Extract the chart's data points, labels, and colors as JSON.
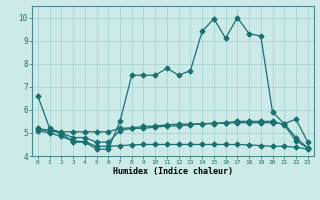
{
  "xlabel": "Humidex (Indice chaleur)",
  "background_color": "#cceae8",
  "line_color": "#1a7070",
  "grid_color": "#aad4d2",
  "xlim": [
    -0.5,
    23.5
  ],
  "ylim": [
    4.0,
    10.5
  ],
  "yticks": [
    4,
    5,
    6,
    7,
    8,
    9,
    10
  ],
  "xticks": [
    0,
    1,
    2,
    3,
    4,
    5,
    6,
    7,
    8,
    9,
    10,
    11,
    12,
    13,
    14,
    15,
    16,
    17,
    18,
    19,
    20,
    21,
    22,
    23
  ],
  "line1_x": [
    0,
    1,
    2,
    3,
    4,
    5,
    6,
    7,
    8,
    9,
    10,
    11,
    12,
    13,
    14,
    15,
    16,
    17,
    18,
    19,
    20,
    21,
    22,
    23
  ],
  "line1_y": [
    6.6,
    5.2,
    5.0,
    4.6,
    4.6,
    4.3,
    4.3,
    5.5,
    7.5,
    7.5,
    7.5,
    7.8,
    7.5,
    7.7,
    9.4,
    9.95,
    9.1,
    10.0,
    9.3,
    9.2,
    5.9,
    5.4,
    5.6,
    4.6
  ],
  "line2_x": [
    0,
    1,
    2,
    3,
    4,
    5,
    6,
    7,
    8,
    9,
    10,
    11,
    12,
    13,
    14,
    15,
    16,
    17,
    18,
    19,
    20,
    21,
    22,
    23
  ],
  "line2_y": [
    5.2,
    5.1,
    5.0,
    4.8,
    4.8,
    4.6,
    4.6,
    5.1,
    5.2,
    5.2,
    5.25,
    5.3,
    5.3,
    5.35,
    5.4,
    5.4,
    5.45,
    5.5,
    5.5,
    5.5,
    5.5,
    5.35,
    4.65,
    4.35
  ],
  "line3_x": [
    0,
    1,
    2,
    3,
    4,
    5,
    6,
    7,
    8,
    9,
    10,
    11,
    12,
    13,
    14,
    15,
    16,
    17,
    18,
    19,
    20,
    21,
    22,
    23
  ],
  "line3_y": [
    5.15,
    5.1,
    5.05,
    5.05,
    5.05,
    5.05,
    5.05,
    5.2,
    5.22,
    5.28,
    5.3,
    5.35,
    5.38,
    5.38,
    5.4,
    5.42,
    5.42,
    5.44,
    5.44,
    5.44,
    5.44,
    5.4,
    4.8,
    4.35
  ],
  "line4_x": [
    0,
    1,
    2,
    3,
    4,
    5,
    6,
    7,
    8,
    9,
    10,
    11,
    12,
    13,
    14,
    15,
    16,
    17,
    18,
    19,
    20,
    21,
    22,
    23
  ],
  "line4_y": [
    5.1,
    5.0,
    4.85,
    4.65,
    4.62,
    4.42,
    4.42,
    4.45,
    4.48,
    4.5,
    4.5,
    4.5,
    4.5,
    4.5,
    4.5,
    4.5,
    4.5,
    4.5,
    4.48,
    4.45,
    4.42,
    4.42,
    4.38,
    4.3
  ]
}
